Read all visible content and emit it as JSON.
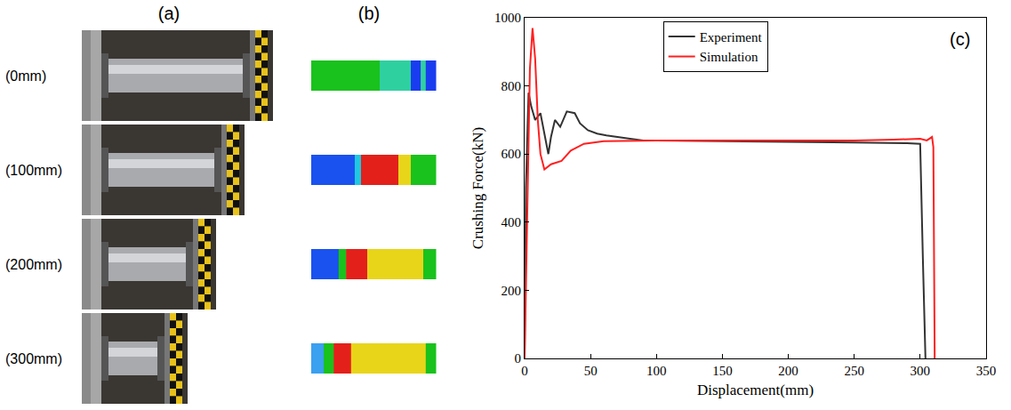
{
  "panels": {
    "a": {
      "label": "(a)",
      "rows": [
        "(0mm)",
        "(100mm)",
        "(200mm)",
        "(300mm)"
      ]
    },
    "b": {
      "label": "(b)"
    }
  },
  "chart_data": {
    "type": "line",
    "annotations": [
      "(c)"
    ],
    "x_label": "Displacement(mm)",
    "y_label": "Crushing Force(kN)",
    "xlim": [
      0,
      350
    ],
    "xticks": [
      0,
      50,
      100,
      150,
      200,
      250,
      300,
      350
    ],
    "ylim": [
      0,
      1000
    ],
    "yticks": [
      0,
      200,
      400,
      600,
      800,
      1000
    ],
    "grid": false,
    "legend": "top",
    "series": [
      {
        "name": "Experiment",
        "color": "#333333",
        "x": [
          0,
          1,
          3,
          5,
          8,
          12,
          15,
          18,
          20,
          23,
          27,
          32,
          38,
          42,
          48,
          55,
          62,
          70,
          80,
          90,
          100,
          150,
          200,
          250,
          290,
          300,
          302,
          304
        ],
        "values": [
          0,
          500,
          780,
          740,
          700,
          720,
          660,
          600,
          650,
          700,
          680,
          725,
          720,
          690,
          670,
          660,
          655,
          650,
          645,
          640,
          640,
          638,
          635,
          634,
          632,
          630,
          300,
          0
        ]
      },
      {
        "name": "Simulation",
        "color": "#ff2020",
        "x": [
          0,
          2,
          4,
          6,
          8,
          10,
          12,
          15,
          20,
          28,
          35,
          45,
          60,
          100,
          150,
          200,
          250,
          280,
          300,
          305,
          309,
          310,
          311
        ],
        "values": [
          0,
          400,
          850,
          970,
          880,
          700,
          600,
          555,
          570,
          580,
          610,
          630,
          638,
          640,
          640,
          640,
          640,
          642,
          645,
          640,
          650,
          620,
          0
        ]
      }
    ]
  }
}
